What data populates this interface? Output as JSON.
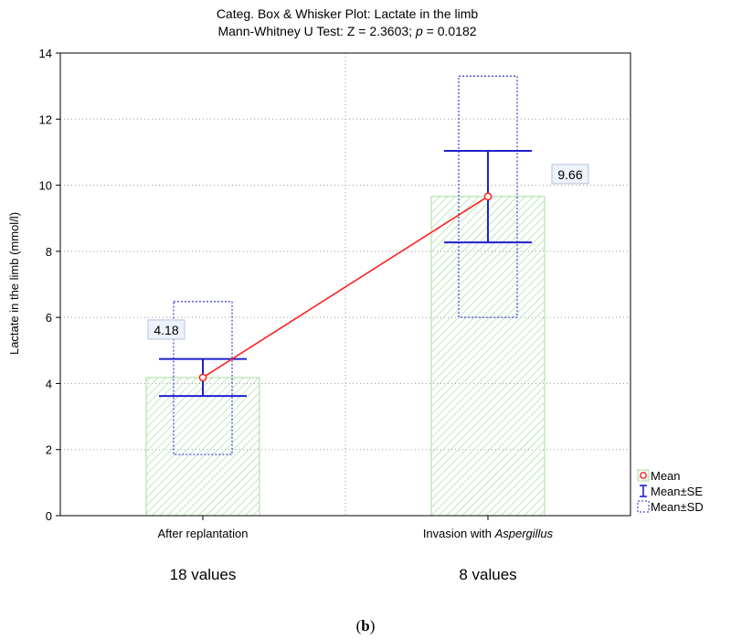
{
  "chart_data": {
    "type": "box",
    "title": "Categ. Box & Whisker Plot: Lactate in the limb",
    "subtitle": "Mann-Whitney U Test: Z = 2.3603; p = 0.0182",
    "ylabel": "Lactate in the limb (mmol/l)",
    "ylim": [
      0,
      14
    ],
    "yticks": [
      "0",
      "2",
      "4",
      "6",
      "8",
      "10",
      "12",
      "14"
    ],
    "grid": true,
    "legend_position": "bottom-right",
    "colors": {
      "mean": "#ff2020",
      "se": "#2020cc",
      "sd": "#4a4ad8",
      "bar_hatch": "#a8dca0"
    },
    "categories": [
      {
        "label": "After replantation",
        "label_italic": "",
        "count": "18 values",
        "mean": 4.18,
        "mean_label": "4.18",
        "se": [
          3.62,
          4.74
        ],
        "sd": [
          1.85,
          6.48
        ]
      },
      {
        "label": "Invasion with ",
        "label_italic": "Aspergillus",
        "count": "8 values",
        "mean": 9.66,
        "mean_label": "9.66",
        "se": [
          8.27,
          11.04
        ],
        "sd": [
          6.0,
          13.3
        ]
      }
    ],
    "legend": [
      {
        "key": "mean",
        "label": "Mean"
      },
      {
        "key": "se",
        "label": "Mean±SE"
      },
      {
        "key": "sd",
        "label": "Mean±SD"
      }
    ],
    "caption": "(b)"
  }
}
